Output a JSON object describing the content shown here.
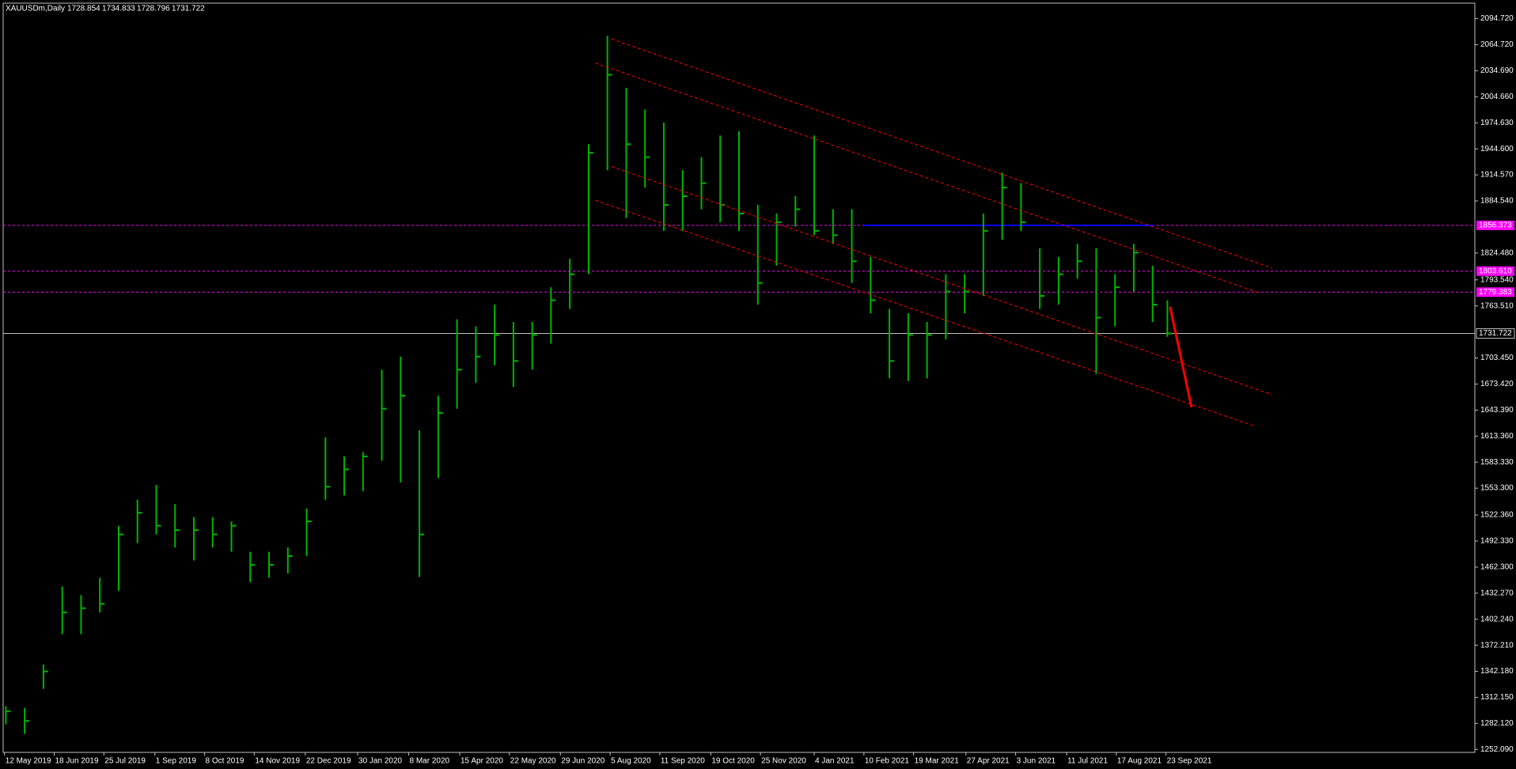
{
  "header": {
    "symbol": "XAUUSDm,Daily",
    "ohlc": [
      "1728.854",
      "1734.833",
      "1728.796",
      "1731.722"
    ]
  },
  "chart_data": {
    "type": "ohlc",
    "color": "#00b400",
    "xlim": [
      "2019-05-11",
      "2022-05-11"
    ],
    "ylim": [
      1248.7,
      2112.6
    ],
    "x": [
      "2019-05-13",
      "2019-05-27",
      "2019-06-10",
      "2019-06-24",
      "2019-07-08",
      "2019-07-22",
      "2019-08-05",
      "2019-08-19",
      "2019-09-02",
      "2019-09-16",
      "2019-09-30",
      "2019-10-14",
      "2019-10-28",
      "2019-11-11",
      "2019-11-25",
      "2019-12-09",
      "2019-12-23",
      "2020-01-06",
      "2020-01-20",
      "2020-02-03",
      "2020-02-17",
      "2020-03-02",
      "2020-03-16",
      "2020-03-30",
      "2020-04-13",
      "2020-04-27",
      "2020-05-11",
      "2020-05-25",
      "2020-06-08",
      "2020-06-22",
      "2020-07-06",
      "2020-07-20",
      "2020-08-03",
      "2020-08-17",
      "2020-08-31",
      "2020-09-14",
      "2020-09-28",
      "2020-10-12",
      "2020-10-26",
      "2020-11-09",
      "2020-11-23",
      "2020-12-07",
      "2020-12-21",
      "2021-01-04",
      "2021-01-18",
      "2021-02-01",
      "2021-02-15",
      "2021-03-01",
      "2021-03-15",
      "2021-03-29",
      "2021-04-12",
      "2021-04-26",
      "2021-05-10",
      "2021-05-24",
      "2021-06-07",
      "2021-06-21",
      "2021-07-05",
      "2021-07-19",
      "2021-08-02",
      "2021-08-16",
      "2021-08-30",
      "2021-09-13",
      "2021-09-24"
    ],
    "high": [
      1302,
      1300,
      1350,
      1440,
      1430,
      1450,
      1510,
      1540,
      1557,
      1535,
      1520,
      1520,
      1515,
      1480,
      1480,
      1485,
      1530,
      1612,
      1590,
      1595,
      1690,
      1705,
      1620,
      1660,
      1748,
      1740,
      1765,
      1745,
      1745,
      1785,
      1818,
      1950,
      2075,
      2015,
      1990,
      1975,
      1920,
      1935,
      1960,
      1965,
      1880,
      1870,
      1890,
      1960,
      1875,
      1875,
      1820,
      1760,
      1755,
      1745,
      1800,
      1800,
      1870,
      1917,
      1905,
      1830,
      1820,
      1835,
      1830,
      1800,
      1835,
      1810,
      1770
    ],
    "low": [
      1281,
      1270,
      1322,
      1385,
      1385,
      1410,
      1435,
      1490,
      1500,
      1485,
      1470,
      1485,
      1480,
      1445,
      1450,
      1455,
      1475,
      1540,
      1545,
      1550,
      1585,
      1560,
      1451,
      1565,
      1645,
      1675,
      1695,
      1670,
      1690,
      1720,
      1760,
      1800,
      1920,
      1865,
      1900,
      1850,
      1850,
      1875,
      1860,
      1850,
      1765,
      1810,
      1855,
      1845,
      1835,
      1790,
      1755,
      1680,
      1677,
      1680,
      1725,
      1755,
      1775,
      1840,
      1850,
      1760,
      1765,
      1795,
      1685,
      1740,
      1780,
      1745,
      1728
    ],
    "close": [
      1296,
      1285,
      1342,
      1410,
      1415,
      1420,
      1500,
      1525,
      1510,
      1505,
      1505,
      1500,
      1510,
      1465,
      1465,
      1475,
      1515,
      1555,
      1575,
      1590,
      1645,
      1660,
      1500,
      1640,
      1690,
      1705,
      1730,
      1700,
      1730,
      1770,
      1800,
      1940,
      2030,
      1950,
      1935,
      1880,
      1890,
      1905,
      1880,
      1870,
      1790,
      1860,
      1875,
      1850,
      1845,
      1815,
      1770,
      1700,
      1730,
      1730,
      1780,
      1780,
      1850,
      1900,
      1860,
      1775,
      1800,
      1815,
      1750,
      1785,
      1825,
      1765,
      1731.722
    ],
    "yticks": [
      {
        "value": 2094.72,
        "label": "2094.720"
      },
      {
        "value": 2064.72,
        "label": "2064.720"
      },
      {
        "value": 2034.69,
        "label": "2034.690"
      },
      {
        "value": 2004.66,
        "label": "2004.660"
      },
      {
        "value": 1974.63,
        "label": "1974.630"
      },
      {
        "value": 1944.6,
        "label": "1944.600"
      },
      {
        "value": 1914.57,
        "label": "1914.570"
      },
      {
        "value": 1884.54,
        "label": "1884.540"
      },
      {
        "value": 1824.48,
        "label": "1824.480"
      },
      {
        "value": 1793.54,
        "label": "1793.540"
      },
      {
        "value": 1763.51,
        "label": "1763.510"
      },
      {
        "value": 1703.45,
        "label": "1703.450"
      },
      {
        "value": 1673.42,
        "label": "1673.420"
      },
      {
        "value": 1643.39,
        "label": "1643.390"
      },
      {
        "value": 1613.36,
        "label": "1613.360"
      },
      {
        "value": 1583.33,
        "label": "1583.330"
      },
      {
        "value": 1553.3,
        "label": "1553.300"
      },
      {
        "value": 1522.36,
        "label": "1522.360"
      },
      {
        "value": 1492.33,
        "label": "1492.330"
      },
      {
        "value": 1462.3,
        "label": "1462.300"
      },
      {
        "value": 1432.27,
        "label": "1432.270"
      },
      {
        "value": 1402.24,
        "label": "1402.240"
      },
      {
        "value": 1372.21,
        "label": "1372.210"
      },
      {
        "value": 1342.18,
        "label": "1342.180"
      },
      {
        "value": 1312.15,
        "label": "1312.150"
      },
      {
        "value": 1282.12,
        "label": "1282.120"
      },
      {
        "value": 1252.09,
        "label": "1252.090"
      }
    ],
    "xticks": [
      {
        "value": "2019-05-12",
        "label": "12 May 2019"
      },
      {
        "value": "2019-06-18",
        "label": "18 Jun 2019"
      },
      {
        "value": "2019-07-25",
        "label": "25 Jul 2019"
      },
      {
        "value": "2019-09-01",
        "label": "1 Sep 2019"
      },
      {
        "value": "2019-10-08",
        "label": "8 Oct 2019"
      },
      {
        "value": "2019-11-14",
        "label": "14 Nov 2019"
      },
      {
        "value": "2019-12-22",
        "label": "22 Dec 2019"
      },
      {
        "value": "2020-01-30",
        "label": "30 Jan 2020"
      },
      {
        "value": "2020-03-08",
        "label": "8 Mar 2020"
      },
      {
        "value": "2020-04-15",
        "label": "15 Apr 2020"
      },
      {
        "value": "2020-05-22",
        "label": "22 May 2020"
      },
      {
        "value": "2020-06-29",
        "label": "29 Jun 2020"
      },
      {
        "value": "2020-08-05",
        "label": "5 Aug 2020"
      },
      {
        "value": "2020-09-11",
        "label": "11 Sep 2020"
      },
      {
        "value": "2020-10-19",
        "label": "19 Oct 2020"
      },
      {
        "value": "2020-11-25",
        "label": "25 Nov 2020"
      },
      {
        "value": "2021-01-04",
        "label": "4 Jan 2021"
      },
      {
        "value": "2021-02-10",
        "label": "10 Feb 2021"
      },
      {
        "value": "2021-03-19",
        "label": "19 Mar 2021"
      },
      {
        "value": "2021-04-27",
        "label": "27 Apr 2021"
      },
      {
        "value": "2021-06-03",
        "label": "3 Jun 2021"
      },
      {
        "value": "2021-07-11",
        "label": "11 Jul 2021"
      },
      {
        "value": "2021-08-17",
        "label": "17 Aug 2021"
      },
      {
        "value": "2021-09-23",
        "label": "23 Sep 2021"
      }
    ],
    "levels": {
      "color": "#ff00ff",
      "values": [
        {
          "value": 1856.373,
          "label": "1856.373"
        },
        {
          "value": 1803.61,
          "label": "1803.610"
        },
        {
          "value": 1779.383,
          "label": "1779.383"
        }
      ]
    },
    "current_price": {
      "color": "#c0c0c0",
      "value": 1731.722,
      "label": "1731.722"
    },
    "segment": {
      "color": "#0000ff",
      "x": [
        "2021-02-10",
        "2021-09-14"
      ],
      "value": 1856.373
    },
    "trendlines": [
      {
        "color": "#ff0000",
        "dash": true,
        "x": [
          "2020-08-06",
          "2021-12-11"
        ],
        "values": [
          2071.3,
          1807.2
        ]
      },
      {
        "color": "#ff0000",
        "dash": true,
        "x": [
          "2020-07-25",
          "2021-11-30"
        ],
        "values": [
          2043.5,
          1779.3
        ]
      },
      {
        "color": "#ff0000",
        "dash": true,
        "x": [
          "2020-08-06",
          "2021-12-11"
        ],
        "values": [
          1924.2,
          1661.2
        ]
      },
      {
        "color": "#ff0000",
        "dash": true,
        "x": [
          "2020-07-25",
          "2021-11-27"
        ],
        "values": [
          1885.2,
          1625.5
        ]
      },
      {
        "color": "#ff0000",
        "dash": false,
        "x": [
          "2021-09-26",
          "2021-10-12"
        ],
        "values": [
          1762.6,
          1646.7
        ]
      }
    ]
  }
}
